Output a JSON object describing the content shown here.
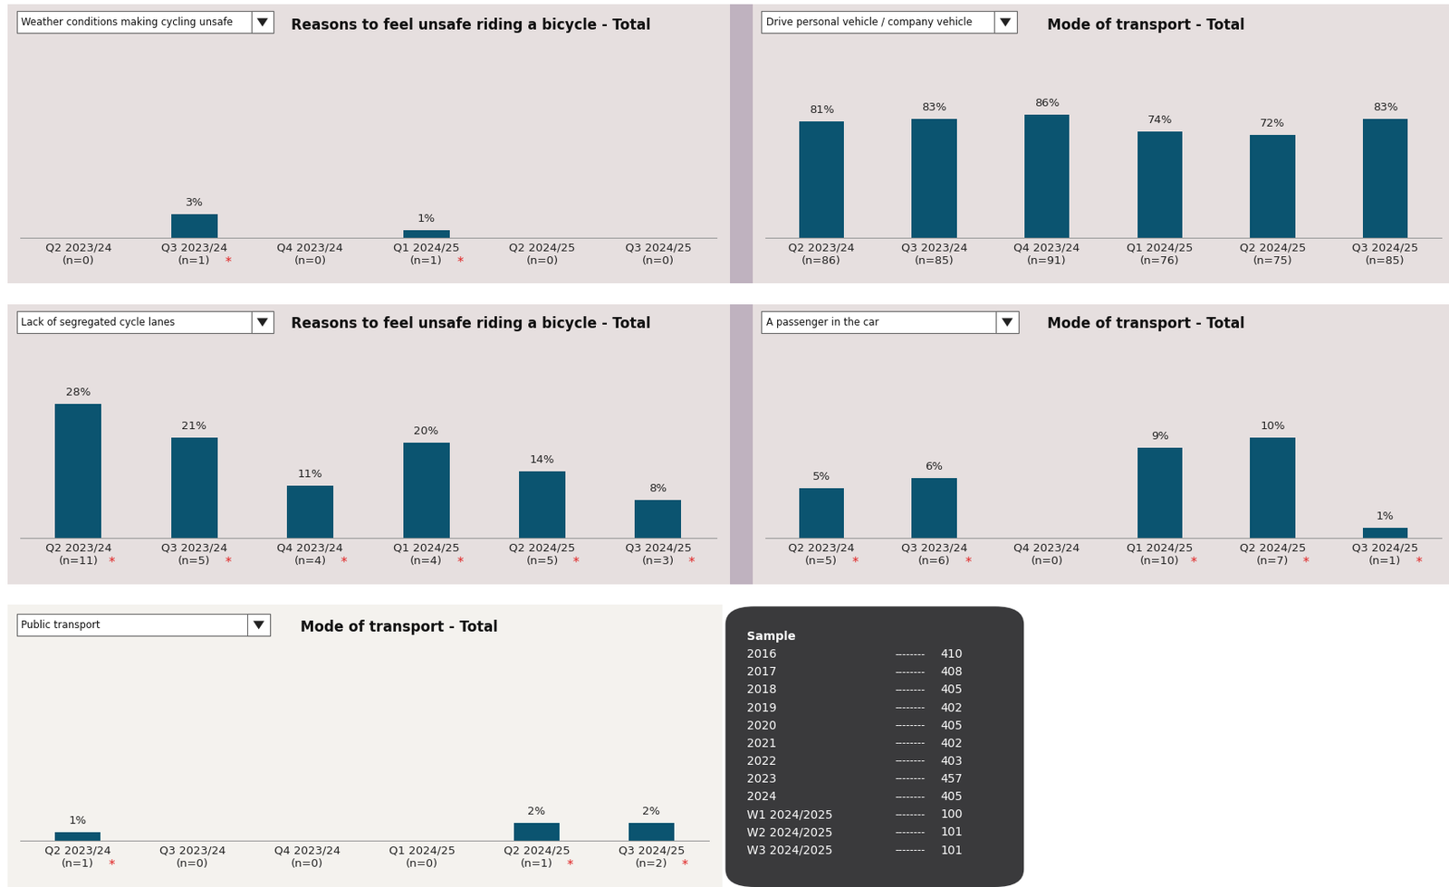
{
  "chart_data": [
    {
      "type": "bar",
      "filter": "Weather conditions making cycling unsafe",
      "title": "Reasons to feel unsafe riding a bicycle - Total",
      "categories": [
        "Q2 2023/24\n(n=0)",
        "Q3 2023/24\n(n=1)",
        "Q4 2023/24\n(n=0)",
        "Q1 2024/25\n(n=1)",
        "Q2 2024/25\n(n=0)",
        "Q3 2024/25\n(n=0)"
      ],
      "flags": [
        null,
        "*",
        null,
        "*",
        null,
        null
      ],
      "values": [
        null,
        3,
        null,
        1,
        null,
        null
      ],
      "value_labels": [
        null,
        "3%",
        null,
        "1%",
        null,
        null
      ],
      "color": "#0b5470",
      "ylim": [
        0,
        25
      ],
      "yticks": [],
      "data_labels": true,
      "tick_labels": "x"
    },
    {
      "type": "bar",
      "filter": "Drive personal vehicle / company vehicle",
      "title": "Mode of transport - Total",
      "categories": [
        "Q2 2023/24\n(n=86)",
        "Q3 2023/24\n(n=85)",
        "Q4 2023/24\n(n=91)",
        "Q1 2024/25\n(n=76)",
        "Q2 2024/25\n(n=75)",
        "Q3 2024/25\n(n=85)"
      ],
      "flags": [
        null,
        null,
        null,
        null,
        null,
        null
      ],
      "values": [
        81,
        83,
        86,
        74,
        72,
        83
      ],
      "value_labels": [
        "81%",
        "83%",
        "86%",
        "74%",
        "72%",
        "83%"
      ],
      "color": "#0b5470",
      "ylim": [
        0,
        140
      ],
      "yticks": [],
      "data_labels": true,
      "tick_labels": "x"
    },
    {
      "type": "bar",
      "filter": "Lack of segregated cycle lanes",
      "title": "Reasons to feel unsafe riding a bicycle - Total",
      "categories": [
        "Q2 2023/24\n(n=11)",
        "Q3 2023/24\n(n=5)",
        "Q4 2023/24\n(n=4)",
        "Q1 2024/25\n(n=4)",
        "Q2 2024/25\n(n=5)",
        "Q3 2024/25\n(n=3)"
      ],
      "flags": [
        "*",
        "*",
        "*",
        "*",
        "*",
        "*"
      ],
      "values": [
        28,
        21,
        11,
        20,
        14,
        8
      ],
      "value_labels": [
        "28%",
        "21%",
        "11%",
        "20%",
        "14%",
        "8%"
      ],
      "color": "#0b5470",
      "ylim": [
        0,
        42
      ],
      "yticks": [],
      "data_labels": true,
      "tick_labels": "x"
    },
    {
      "type": "bar",
      "filter": "A passenger in the car",
      "title": "Mode of transport - Total",
      "categories": [
        "Q2 2023/24\n(n=5)",
        "Q3 2023/24\n(n=6)",
        "Q4 2023/24\n(n=0)",
        "Q1 2024/25\n(n=10)",
        "Q2 2024/25\n(n=7)",
        "Q3 2024/25\n(n=1)"
      ],
      "flags": [
        "*",
        "*",
        null,
        "*",
        "*",
        "*"
      ],
      "values": [
        5,
        6,
        null,
        9,
        10,
        1
      ],
      "value_labels": [
        "5%",
        "6%",
        null,
        "9%",
        "10%",
        "1%"
      ],
      "color": "#0b5470",
      "ylim": [
        0,
        20
      ],
      "yticks": [],
      "data_labels": true,
      "tick_labels": "x"
    },
    {
      "type": "bar",
      "filter": "Public transport",
      "title": "Mode of transport - Total",
      "categories": [
        "Q2 2023/24\n(n=1)",
        "Q3 2023/24\n(n=0)",
        "Q4 2023/24\n(n=0)",
        "Q1 2024/25\n(n=0)",
        "Q2 2024/25\n(n=1)",
        "Q3 2024/25\n(n=2)"
      ],
      "flags": [
        "*",
        null,
        null,
        null,
        "*",
        "*"
      ],
      "values": [
        1,
        null,
        null,
        null,
        2,
        2
      ],
      "value_labels": [
        "1%",
        null,
        null,
        null,
        "2%",
        "2%"
      ],
      "color": "#0b5470",
      "ylim": [
        0,
        23
      ],
      "yticks": [],
      "data_labels": true,
      "tick_labels": "x"
    }
  ],
  "sample": {
    "title": "Sample",
    "rows": [
      [
        "2016",
        "--------",
        410
      ],
      [
        "2017",
        "--------",
        408
      ],
      [
        "2018",
        "--------",
        405
      ],
      [
        "2019",
        "--------",
        402
      ],
      [
        "2020",
        "--------",
        405
      ],
      [
        "2021",
        "--------",
        402
      ],
      [
        "2022",
        "--------",
        403
      ],
      [
        "2023",
        "--------",
        457
      ],
      [
        "2024",
        "--------",
        405
      ],
      [
        "W1 2024/2025",
        "--------",
        100
      ],
      [
        "W2 2024/2025",
        "--------",
        101
      ],
      [
        "W3 2024/2025",
        "--------",
        101
      ]
    ]
  }
}
